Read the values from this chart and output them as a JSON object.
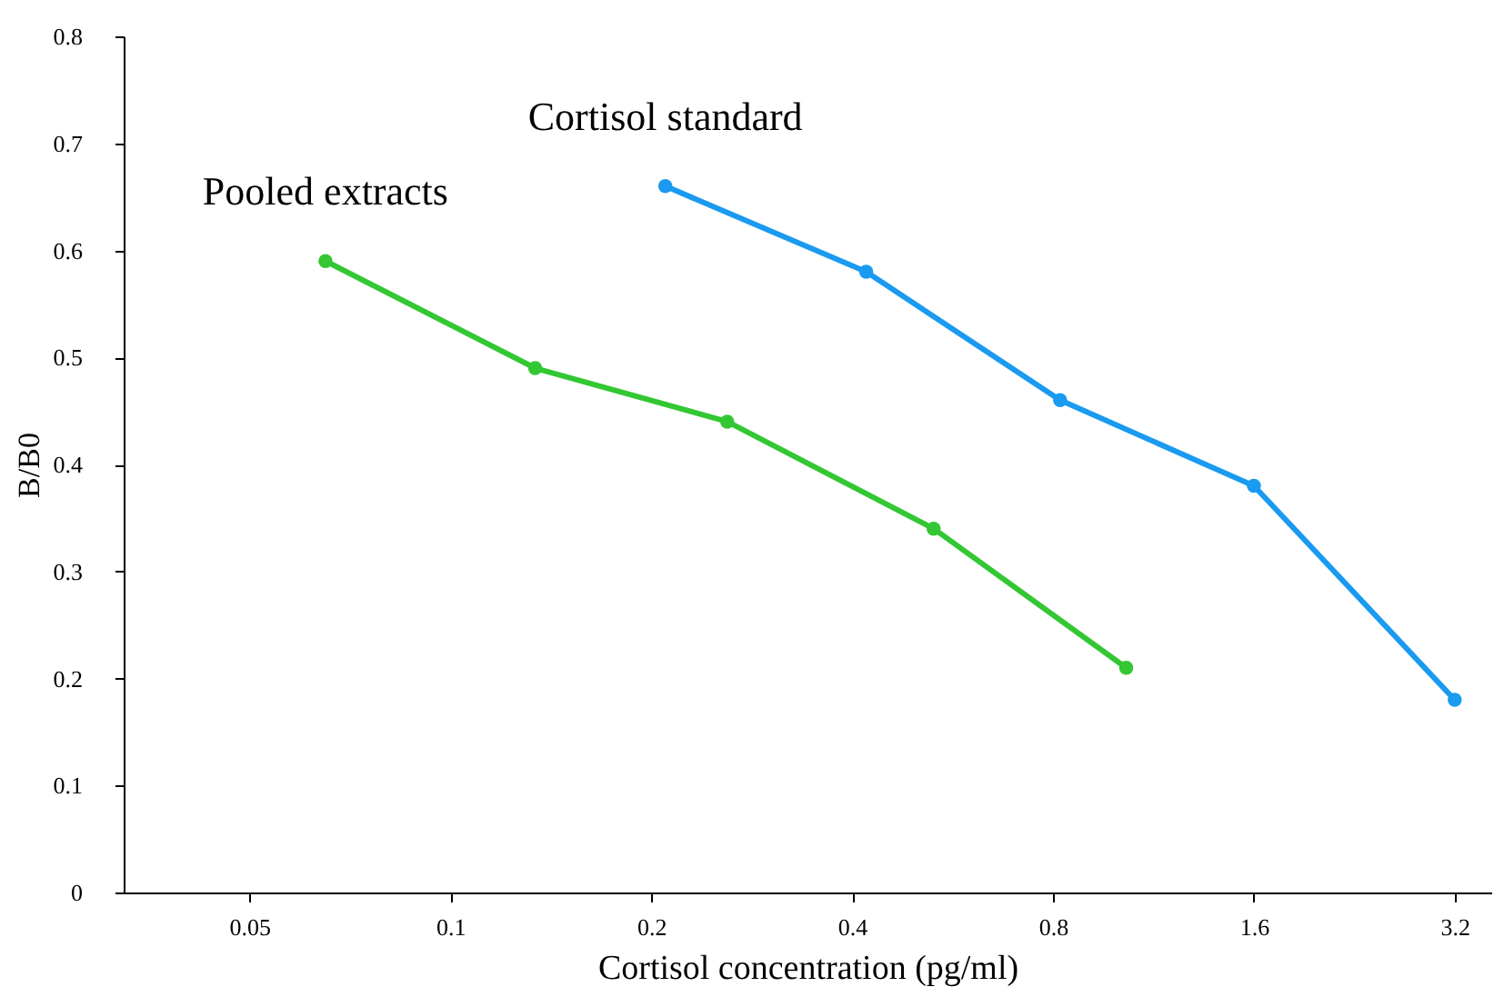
{
  "chart_data": {
    "type": "line",
    "xlabel": "Cortisol concentration (pg/ml)",
    "ylabel": "B/B0",
    "log": "x",
    "xlim": [
      0.0324,
      3.63
    ],
    "xticks": [
      0.05,
      0.1,
      0.2,
      0.4,
      0.8,
      1.6,
      3.2
    ],
    "ylim": [
      0,
      0.8
    ],
    "yticks": [
      0,
      0.1,
      0.2,
      0.3,
      0.4,
      0.5,
      0.6,
      0.7,
      0.8
    ],
    "grid": false,
    "marker": "circle",
    "line_style": "solid",
    "series": [
      {
        "name": "Cortisol standard",
        "color": "#1a9af0",
        "x": [
          0.21,
          0.42,
          0.82,
          1.6,
          3.2
        ],
        "values": [
          0.66,
          0.58,
          0.46,
          0.38,
          0.18
        ]
      },
      {
        "name": "Pooled extracts",
        "color": "#33c733",
        "x": [
          0.065,
          0.134,
          0.26,
          0.53,
          1.03
        ],
        "values": [
          0.59,
          0.49,
          0.44,
          0.34,
          0.21
        ]
      }
    ]
  }
}
